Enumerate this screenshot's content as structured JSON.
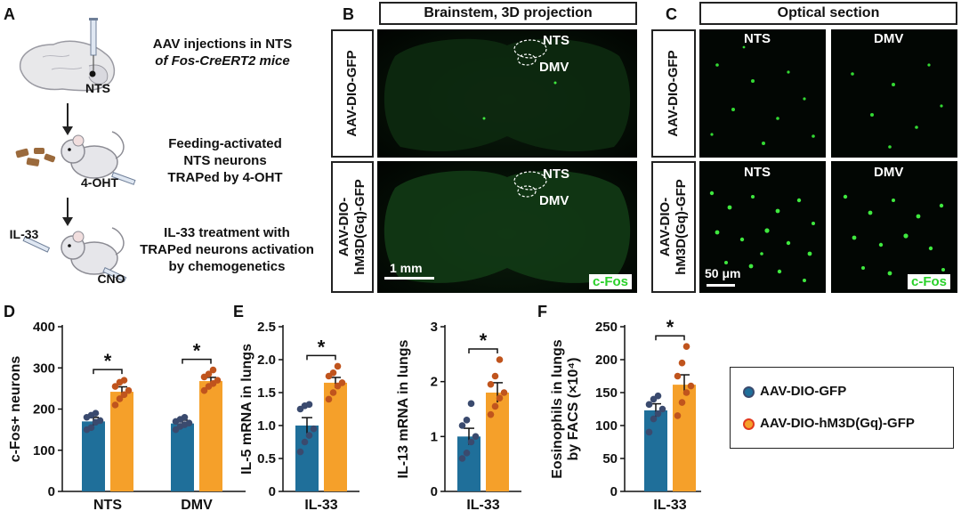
{
  "colors": {
    "gfp": "#1f6f9a",
    "gq": "#f5a02a",
    "gfp_dot": "#3a4a6e",
    "gq_dot": "#c0541d",
    "cfos": "#2ad12a"
  },
  "panelA": {
    "label": "A",
    "step1": [
      "AAV injections in NTS",
      "of Fos-CreERT2 mice"
    ],
    "nts": "NTS",
    "step2": [
      "Feeding-activated",
      "NTS neurons",
      "TRAPed by 4-OHT"
    ],
    "ohT": "4-OHT",
    "il33": "IL-33",
    "step3": [
      "IL-33 treatment with",
      "TRAPed neurons activation",
      "by chemogenetics"
    ],
    "cno": "CNO"
  },
  "panelB": {
    "label": "B",
    "title": "Brainstem, 3D projection",
    "row1": "AAV-DIO-GFP",
    "row2": [
      "AAV-DIO-",
      "hM3D(Gq)-GFP"
    ],
    "nts": "NTS",
    "dmv": "DMV",
    "scale": "1 mm",
    "cfos": "c-Fos"
  },
  "panelC": {
    "label": "C",
    "title": "Optical section",
    "row1": "AAV-DIO-GFP",
    "row2": [
      "AAV-DIO-",
      "hM3D(Gq)-GFP"
    ],
    "nts": "NTS",
    "dmv": "DMV",
    "scale": "50 μm",
    "cfos": "c-Fos"
  },
  "panelD": {
    "label": "D"
  },
  "panelE": {
    "label": "E"
  },
  "panelF": {
    "label": "F"
  },
  "legend": {
    "gfp": "AAV-DIO-GFP",
    "gq": "AAV-DIO-hM3D(Gq)-GFP"
  },
  "chart_data": [
    {
      "id": "D",
      "type": "bar",
      "ylabel": "c-Fos+ neurons",
      "categories": [
        "NTS",
        "DMV"
      ],
      "ylim": [
        0,
        400
      ],
      "yticks": [
        0,
        100,
        200,
        300,
        400
      ],
      "series": [
        {
          "name": "AAV-DIO-GFP",
          "values": [
            170,
            165
          ],
          "sem": [
            10,
            8
          ],
          "points": [
            [
              150,
              155,
              168,
              172,
              180,
              185,
              190
            ],
            [
              150,
              158,
              162,
              166,
              170,
              175,
              180
            ]
          ]
        },
        {
          "name": "AAV-DIO-hM3D(Gq)-GFP",
          "values": [
            242,
            268
          ],
          "sem": [
            12,
            9
          ],
          "points": [
            [
              210,
              225,
              235,
              245,
              255,
              265,
              270
            ],
            [
              245,
              255,
              262,
              270,
              278,
              285,
              295
            ]
          ]
        }
      ],
      "significance": [
        "*",
        "*"
      ]
    },
    {
      "id": "E1",
      "type": "bar",
      "ylabel": "IL-5 mRNA in lungs",
      "categories": [
        "IL-33"
      ],
      "ylim": [
        0,
        2.5
      ],
      "yticks": [
        0,
        0.5,
        1.0,
        1.5,
        2.0,
        2.5
      ],
      "series": [
        {
          "name": "AAV-DIO-GFP",
          "values": [
            1.0
          ],
          "sem": [
            0.12
          ],
          "points": [
            [
              0.6,
              0.75,
              0.85,
              0.95,
              1.25,
              1.3,
              1.32
            ]
          ]
        },
        {
          "name": "AAV-DIO-hM3D(Gq)-GFP",
          "values": [
            1.65
          ],
          "sem": [
            0.08
          ],
          "points": [
            [
              1.4,
              1.5,
              1.6,
              1.65,
              1.75,
              1.8,
              1.9
            ]
          ]
        }
      ],
      "significance": [
        "*"
      ]
    },
    {
      "id": "E2",
      "type": "bar",
      "ylabel": "IL-13 mRNA in lungs",
      "categories": [
        "IL-33"
      ],
      "ylim": [
        0,
        3
      ],
      "yticks": [
        0,
        1,
        2,
        3
      ],
      "series": [
        {
          "name": "AAV-DIO-GFP",
          "values": [
            1.0
          ],
          "sem": [
            0.15
          ],
          "points": [
            [
              0.6,
              0.7,
              0.9,
              1.0,
              1.2,
              1.3,
              1.6
            ]
          ]
        },
        {
          "name": "AAV-DIO-hM3D(Gq)-GFP",
          "values": [
            1.8
          ],
          "sem": [
            0.18
          ],
          "points": [
            [
              1.4,
              1.55,
              1.7,
              1.8,
              1.95,
              2.1,
              2.4
            ]
          ]
        }
      ],
      "significance": [
        "*"
      ]
    },
    {
      "id": "F",
      "type": "bar",
      "ylabel": [
        "Eosinophils in lungs",
        "by FACS (×10⁴)"
      ],
      "categories": [
        "IL-33"
      ],
      "ylim": [
        0,
        250
      ],
      "yticks": [
        0,
        50,
        100,
        150,
        200,
        250
      ],
      "series": [
        {
          "name": "AAV-DIO-GFP",
          "values": [
            123
          ],
          "sem": [
            10
          ],
          "points": [
            [
              90,
              110,
              118,
              125,
              132,
              140,
              145
            ]
          ]
        },
        {
          "name": "AAV-DIO-hM3D(Gq)-GFP",
          "values": [
            162
          ],
          "sem": [
            15
          ],
          "points": [
            [
              115,
              135,
              150,
              160,
              175,
              195,
              220
            ]
          ]
        }
      ],
      "significance": [
        "*"
      ]
    }
  ]
}
